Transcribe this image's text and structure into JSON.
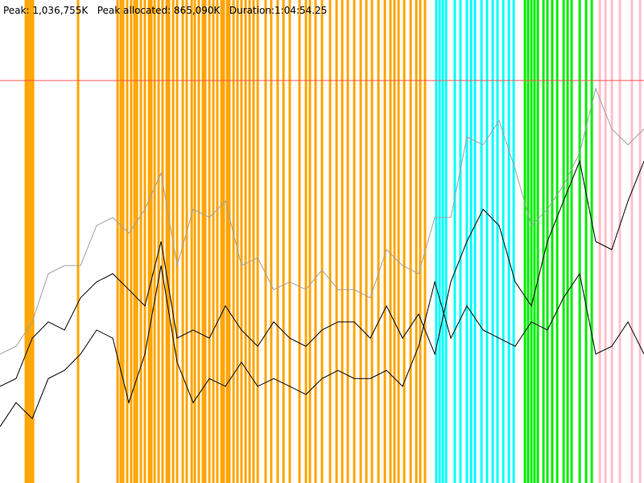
{
  "chart_data": {
    "type": "line",
    "title": "Peak: 1,036,755K   Peak allocated: 865,090K   Duration:1:04:54.25",
    "xlim": [
      0,
      3894
    ],
    "ylim": [
      0,
      1244000
    ],
    "reference_line": {
      "value": 1036755,
      "color": "#ff5050"
    },
    "events": [
      {
        "color": "#ffa500",
        "x": [
          156,
          170,
          185,
          200,
          472,
          711,
          730,
          745,
          769,
          793,
          813,
          828,
          852,
          876,
          901,
          915,
          935,
          959,
          983,
          1008,
          1022,
          1047,
          1071,
          1105,
          1129,
          1159,
          1178,
          1202,
          1227,
          1241,
          1266,
          1290,
          1314,
          1339,
          1353,
          1373,
          1387,
          1412,
          1436,
          1460,
          1485,
          1509,
          1533,
          1558,
          1606,
          1640,
          1679,
          1714,
          1752,
          1811,
          1850,
          1874,
          1908,
          1947,
          1996,
          2035,
          2069,
          2103,
          2142,
          2181,
          2215,
          2249,
          2288,
          2327,
          2361,
          2385,
          2410,
          2444,
          2483,
          2517,
          2541,
          2570
        ]
      },
      {
        "color": "#00ffff",
        "x": [
          2638,
          2658,
          2677,
          2697,
          2750,
          2784,
          2823,
          2848,
          2872,
          2911,
          2945,
          2979,
          3008,
          3043,
          3077,
          3106
        ]
      },
      {
        "color": "#00ee00",
        "x": [
          3174,
          3193,
          3213,
          3232,
          3252,
          3286,
          3310,
          3339,
          3369,
          3408,
          3432,
          3456,
          3505,
          3544,
          3578
        ]
      },
      {
        "color": "#ffc0cb",
        "x": [
          3627,
          3661,
          3700,
          3748,
          3821,
          3870
        ]
      }
    ],
    "x": [
      0,
      97,
      195,
      292,
      390,
      487,
      584,
      682,
      779,
      876,
      974,
      1071,
      1168,
      1266,
      1363,
      1460,
      1558,
      1655,
      1752,
      1850,
      1947,
      2044,
      2142,
      2239,
      2337,
      2434,
      2531,
      2629,
      2726,
      2823,
      2921,
      3018,
      3115,
      3213,
      3310,
      3407,
      3505,
      3602,
      3699,
      3797,
      3894
    ],
    "series": [
      {
        "color": "#a0a0a0",
        "values": [
          332000,
          352000,
          415000,
          539000,
          560000,
          560000,
          663000,
          684000,
          643000,
          705000,
          798000,
          560000,
          705000,
          684000,
          726000,
          560000,
          580000,
          498000,
          518000,
          498000,
          549000,
          498000,
          498000,
          477000,
          601000,
          560000,
          539000,
          684000,
          684000,
          891000,
          871000,
          933000,
          808000,
          663000,
          705000,
          767000,
          850000,
          1016000,
          912000,
          871000,
          912000
        ]
      },
      {
        "color": "#000000",
        "values": [
          249000,
          269000,
          373000,
          415000,
          394000,
          477000,
          518000,
          539000,
          498000,
          456000,
          622000,
          373000,
          394000,
          373000,
          456000,
          394000,
          352000,
          415000,
          373000,
          352000,
          394000,
          415000,
          415000,
          373000,
          456000,
          373000,
          435000,
          332000,
          518000,
          622000,
          705000,
          663000,
          518000,
          456000,
          622000,
          726000,
          829000,
          622000,
          601000,
          726000,
          829000
        ]
      },
      {
        "color": "#000000",
        "values": [
          145000,
          207000,
          166000,
          269000,
          290000,
          332000,
          394000,
          373000,
          207000,
          332000,
          560000,
          311000,
          207000,
          269000,
          249000,
          311000,
          249000,
          269000,
          249000,
          228000,
          269000,
          290000,
          269000,
          269000,
          290000,
          249000,
          352000,
          518000,
          373000,
          456000,
          394000,
          373000,
          352000,
          415000,
          394000,
          477000,
          539000,
          332000,
          352000,
          415000,
          332000
        ]
      }
    ]
  }
}
